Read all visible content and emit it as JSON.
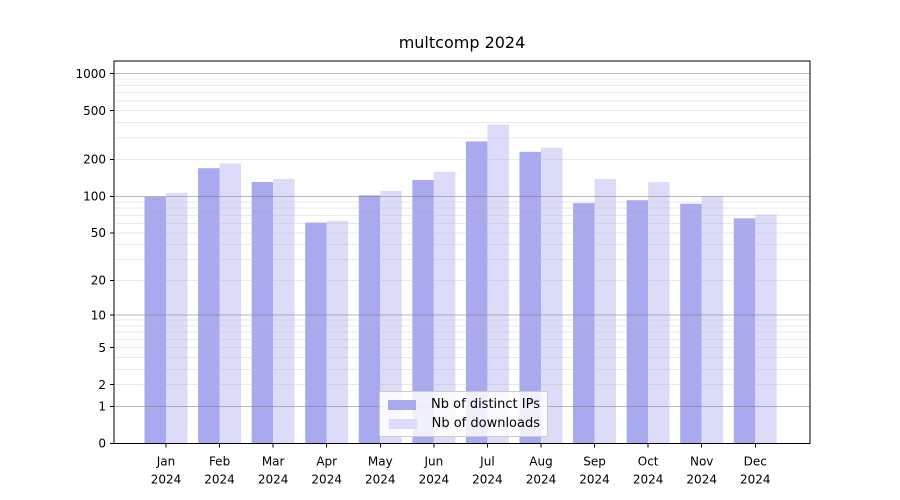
{
  "chart_data": {
    "type": "bar",
    "title": "multcomp 2024",
    "categories": [
      "Jan",
      "Feb",
      "Mar",
      "Apr",
      "May",
      "Jun",
      "Jul",
      "Aug",
      "Sep",
      "Oct",
      "Nov",
      "Dec"
    ],
    "x_tick_year": "2024",
    "series": [
      {
        "name": "Nb of distinct IPs",
        "color": "#a9a9f0",
        "values": [
          99,
          170,
          131,
          61,
          102,
          136,
          281,
          231,
          88,
          93,
          87,
          66
        ]
      },
      {
        "name": "Nb of downloads",
        "color": "#dcdcf9",
        "values": [
          107,
          186,
          139,
          63,
          111,
          159,
          385,
          250,
          139,
          131,
          100,
          71
        ]
      }
    ],
    "yscale": "log1p",
    "y_ticks": [
      0,
      1,
      2,
      5,
      10,
      20,
      50,
      100,
      200,
      500,
      1000
    ],
    "ylim": [
      0,
      1265
    ],
    "grid": "horizontal, major on decades, minor on 2-9 multiples, drawn over bars",
    "legend_position": "lower center inside plot",
    "colors": {
      "background": "#ffffff",
      "axis": "#000000",
      "major_grid": "#b3b3b3",
      "minor_grid": "#ededed",
      "text": "#000000",
      "legend_border": "#cccccc"
    }
  }
}
